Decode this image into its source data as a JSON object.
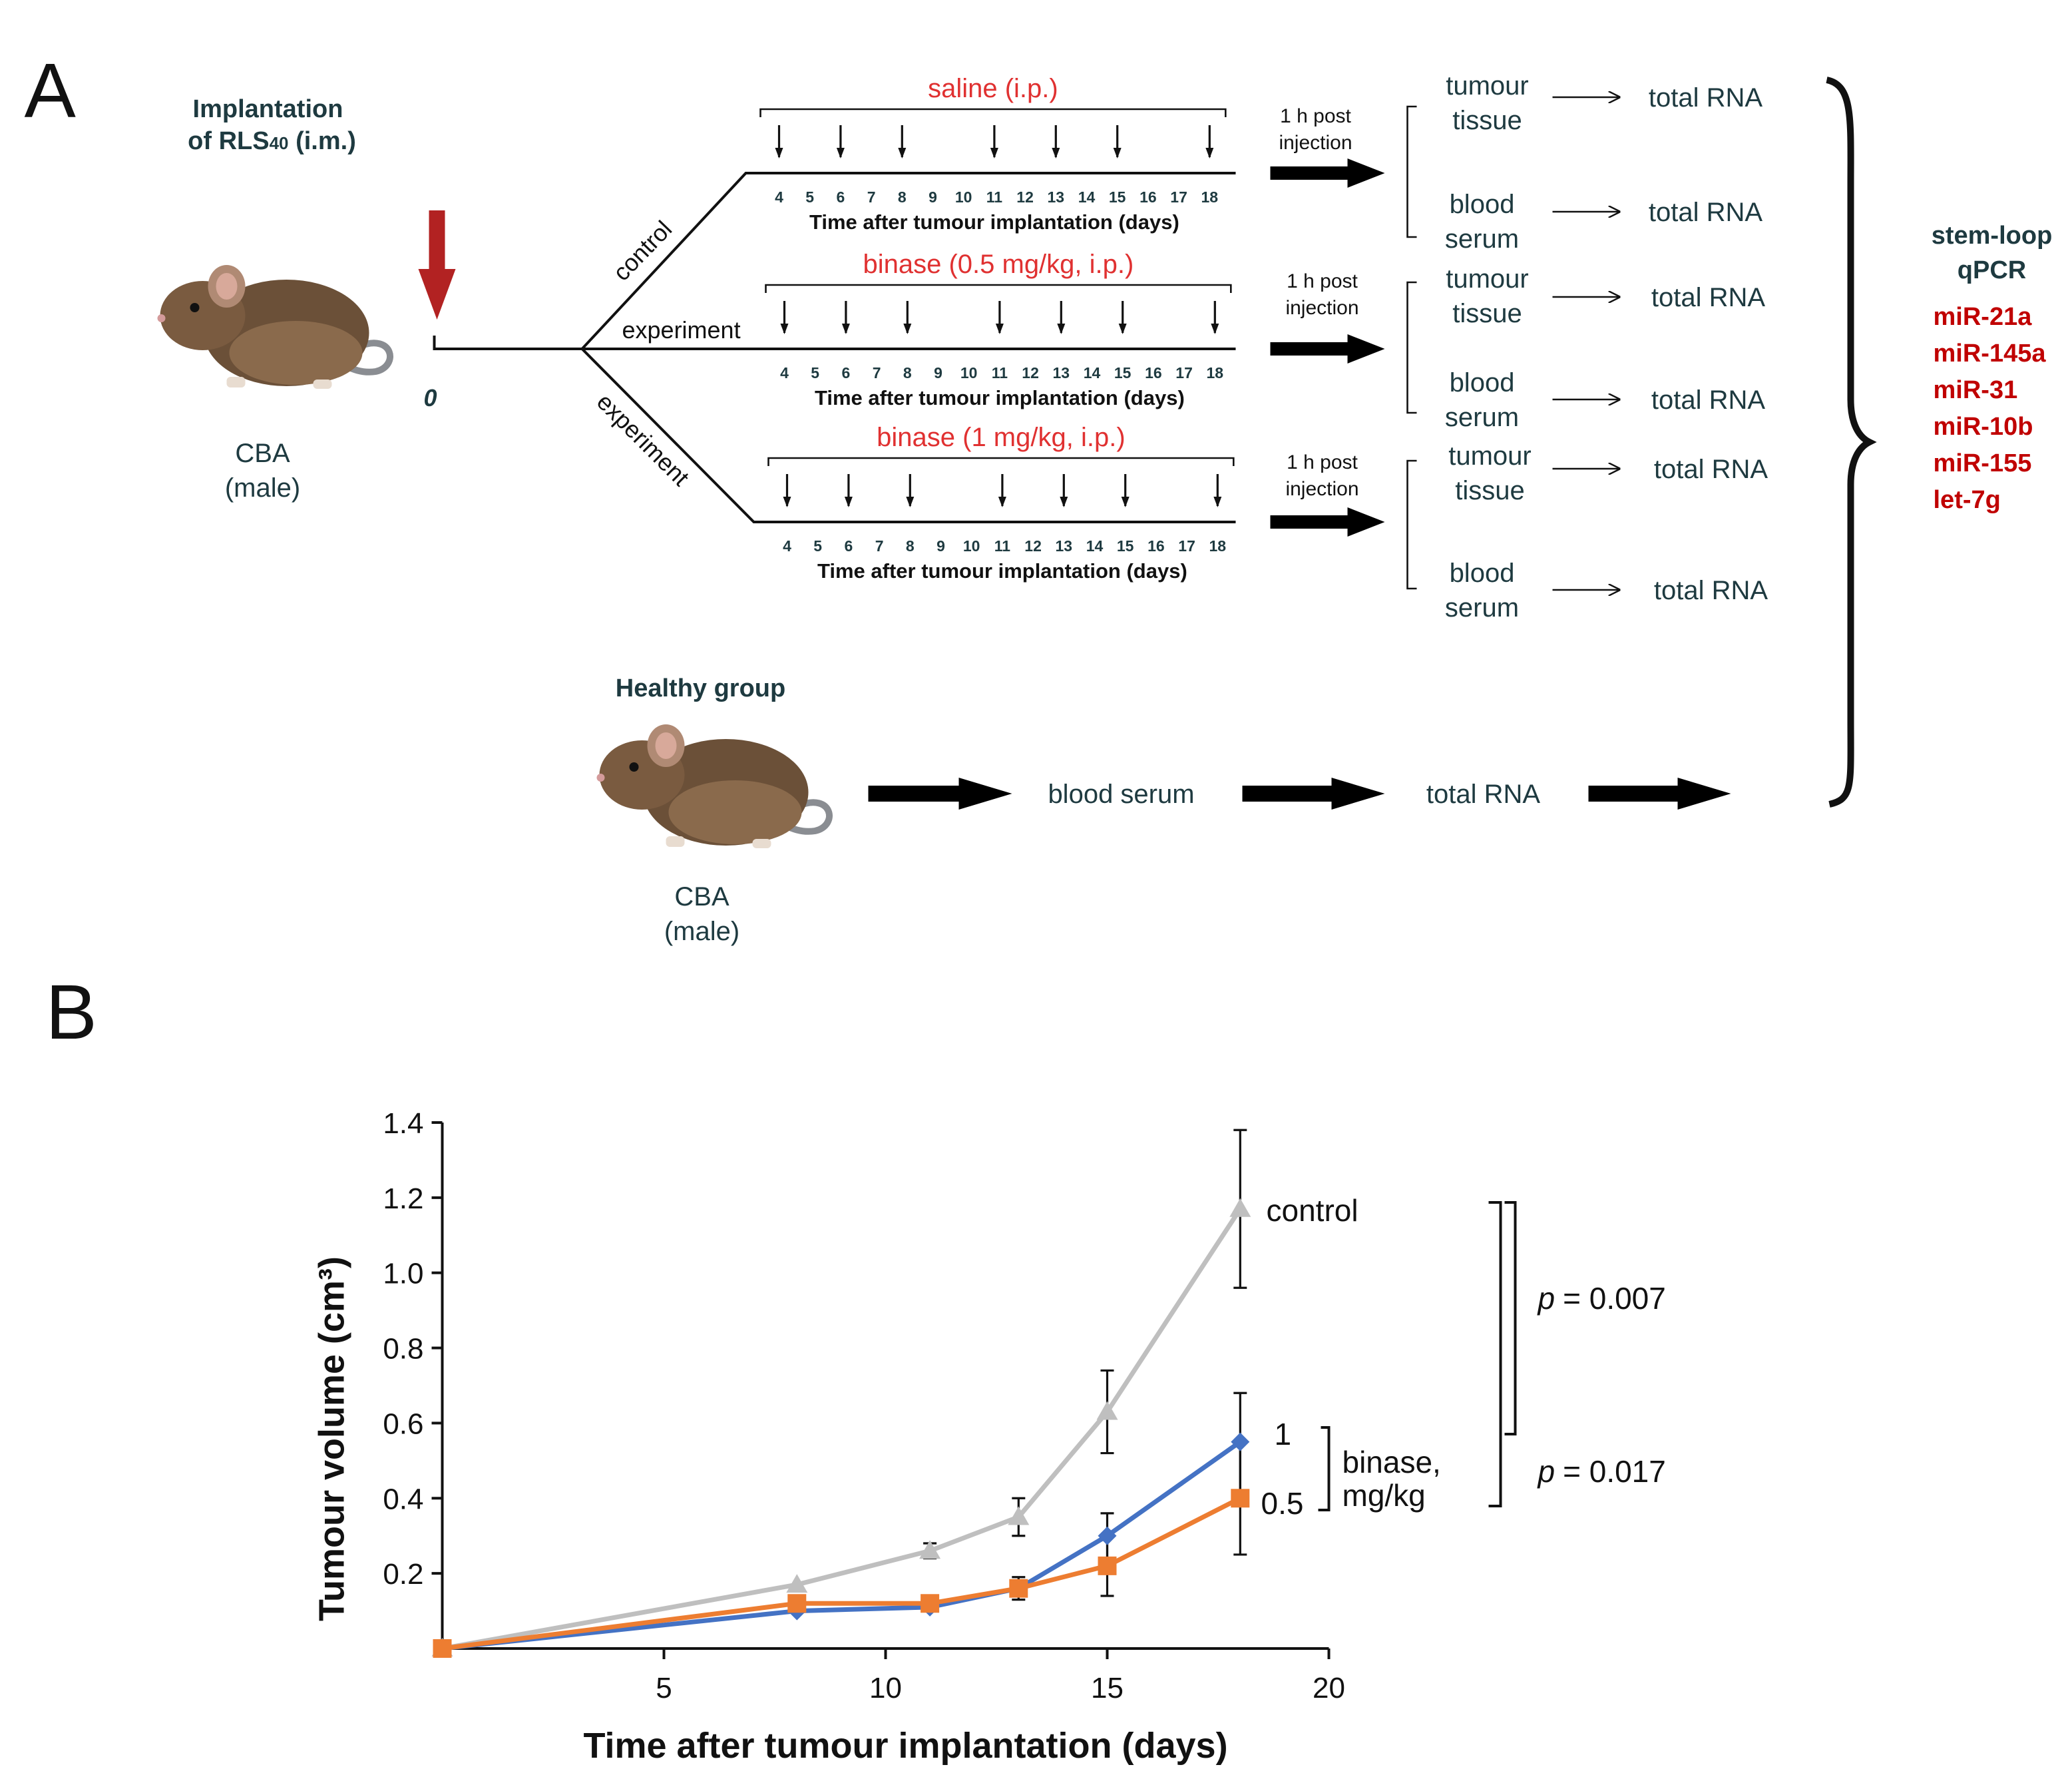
{
  "panel_a": {
    "label": "A",
    "implantation": [
      "Implantation",
      "of RLS",
      "40",
      " (i.m.)"
    ],
    "zero": "0",
    "strain": [
      "CBA",
      "(male)"
    ],
    "groups": [
      {
        "branch": "control",
        "treatment": "saline (i.p.)"
      },
      {
        "branch": "experiment",
        "treatment": "binase (0.5 mg/kg, i.p.)"
      },
      {
        "branch": "experiment",
        "treatment": "binase (1 mg/kg, i.p.)"
      }
    ],
    "timeline_ticks": [
      "4",
      "5",
      "6",
      "7",
      "8",
      "9",
      "10",
      "11",
      "12",
      "13",
      "14",
      "15",
      "16",
      "17",
      "18"
    ],
    "timeline_label": "Time after tumour implantation (days)",
    "post_injection": [
      "1 h post",
      "injection"
    ],
    "samples": [
      {
        "lines": [
          "tumour",
          "tissue"
        ],
        "result": "total RNA"
      },
      {
        "lines": [
          "blood",
          "serum"
        ],
        "result": "total RNA"
      }
    ],
    "healthy": {
      "title": "Healthy group",
      "strain": [
        "CBA",
        "(male)"
      ],
      "step1": "blood serum",
      "step2": "total RNA"
    },
    "assay": [
      "stem-loop",
      "qPCR"
    ],
    "mirnas": [
      "miR-21a",
      "miR-145a",
      "miR-31",
      "miR-10b",
      "miR-155",
      "let-7g"
    ]
  },
  "panel_b": {
    "label": "B",
    "annotations": {
      "p1": "= 0.007",
      "p2": "= 0.017",
      "p_symbol": "p",
      "binase": [
        "binase,",
        "mg/kg"
      ],
      "dose_1": "1",
      "dose_05": "0.5",
      "control": "control"
    }
  },
  "chart_data": {
    "type": "line",
    "title": "",
    "xlabel": "Time after tumour implantation (days)",
    "ylabel": "Tumour volume (cm³)",
    "xlim": [
      0,
      20
    ],
    "ylim": [
      0,
      1.4
    ],
    "xticks": [
      5,
      10,
      15,
      20
    ],
    "yticks": [
      0.2,
      0.4,
      0.6,
      0.8,
      1.0,
      1.2,
      1.4
    ],
    "ytick_labels": [
      "0.2",
      "0.4",
      "0.6",
      "0.8",
      "1.0",
      "1.2",
      "1.4"
    ],
    "x": [
      0,
      8,
      11,
      13,
      15,
      18
    ],
    "series": [
      {
        "name": "control",
        "color": "#bfbfbf",
        "marker": "triangle",
        "values": [
          0,
          0.17,
          0.26,
          0.35,
          0.63,
          1.17
        ],
        "errors": [
          0,
          0,
          0.02,
          0.05,
          0.11,
          0.21
        ]
      },
      {
        "name": "binase 1 mg/kg",
        "color": "#4472c4",
        "marker": "diamond",
        "values": [
          0,
          0.1,
          0.11,
          0.16,
          0.3,
          0.55
        ],
        "errors": [
          0,
          0,
          0,
          0.02,
          0.06,
          0.13
        ]
      },
      {
        "name": "binase 0.5 mg/kg",
        "color": "#ed7d31",
        "marker": "square",
        "values": [
          0,
          0.12,
          0.12,
          0.16,
          0.22,
          0.4
        ],
        "errors": [
          0,
          0,
          0,
          0.03,
          0.08,
          0.15
        ]
      }
    ]
  },
  "colors": {
    "red": "#e03131",
    "dark_red": "#c00000",
    "teal_text": "#1e3a40",
    "arrow_red": "#b22222"
  }
}
